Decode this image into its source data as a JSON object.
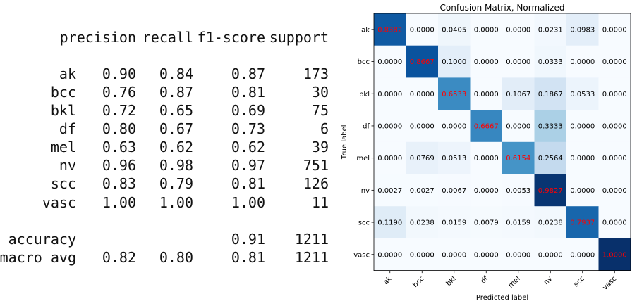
{
  "report": {
    "headers": [
      "precision",
      "recall",
      "f1-score",
      "support"
    ],
    "rows": [
      {
        "label": "ak",
        "precision": "0.90",
        "recall": "0.84",
        "f1": "0.87",
        "support": "173"
      },
      {
        "label": "bcc",
        "precision": "0.76",
        "recall": "0.87",
        "f1": "0.81",
        "support": "30"
      },
      {
        "label": "bkl",
        "precision": "0.72",
        "recall": "0.65",
        "f1": "0.69",
        "support": "75"
      },
      {
        "label": "df",
        "precision": "0.80",
        "recall": "0.67",
        "f1": "0.73",
        "support": "6"
      },
      {
        "label": "mel",
        "precision": "0.63",
        "recall": "0.62",
        "f1": "0.62",
        "support": "39"
      },
      {
        "label": "nv",
        "precision": "0.96",
        "recall": "0.98",
        "f1": "0.97",
        "support": "751"
      },
      {
        "label": "scc",
        "precision": "0.83",
        "recall": "0.79",
        "f1": "0.81",
        "support": "126"
      },
      {
        "label": "vasc",
        "precision": "1.00",
        "recall": "1.00",
        "f1": "1.00",
        "support": "11"
      }
    ],
    "accuracy": {
      "label": "accuracy",
      "f1": "0.91",
      "support": "1211"
    },
    "macro": {
      "label": "macro avg",
      "precision": "0.82",
      "recall": "0.80",
      "f1": "0.81",
      "support": "1211"
    }
  },
  "chart_data": {
    "type": "heatmap",
    "title": "Confusion Matrix, Normalized",
    "xlabel": "Predicted label",
    "ylabel": "True label",
    "x_categories": [
      "ak",
      "bcc",
      "bkl",
      "df",
      "mel",
      "nv",
      "scc",
      "vasc"
    ],
    "y_categories": [
      "ak",
      "bcc",
      "bkl",
      "df",
      "mel",
      "nv",
      "scc",
      "vasc"
    ],
    "values": [
      [
        0.8382,
        0.0,
        0.0405,
        0.0,
        0.0,
        0.0231,
        0.0983,
        0.0
      ],
      [
        0.0,
        0.8667,
        0.1,
        0.0,
        0.0,
        0.0333,
        0.0,
        0.0
      ],
      [
        0.0,
        0.0,
        0.6533,
        0.0,
        0.1067,
        0.1867,
        0.0533,
        0.0
      ],
      [
        0.0,
        0.0,
        0.0,
        0.6667,
        0.0,
        0.3333,
        0.0,
        0.0
      ],
      [
        0.0,
        0.0769,
        0.0513,
        0.0,
        0.6154,
        0.2564,
        0.0,
        0.0
      ],
      [
        0.0027,
        0.0027,
        0.0067,
        0.0,
        0.0053,
        0.9827,
        0.0,
        0.0
      ],
      [
        0.119,
        0.0238,
        0.0159,
        0.0079,
        0.0159,
        0.0238,
        0.7937,
        0.0
      ],
      [
        0.0,
        0.0,
        0.0,
        0.0,
        0.0,
        0.0,
        0.0,
        1.0
      ]
    ],
    "vmin": 0,
    "vmax": 1,
    "colormap": "Blues",
    "diagonal_text_color": "#ff0000",
    "offdiagonal_text_color": "#000000"
  }
}
